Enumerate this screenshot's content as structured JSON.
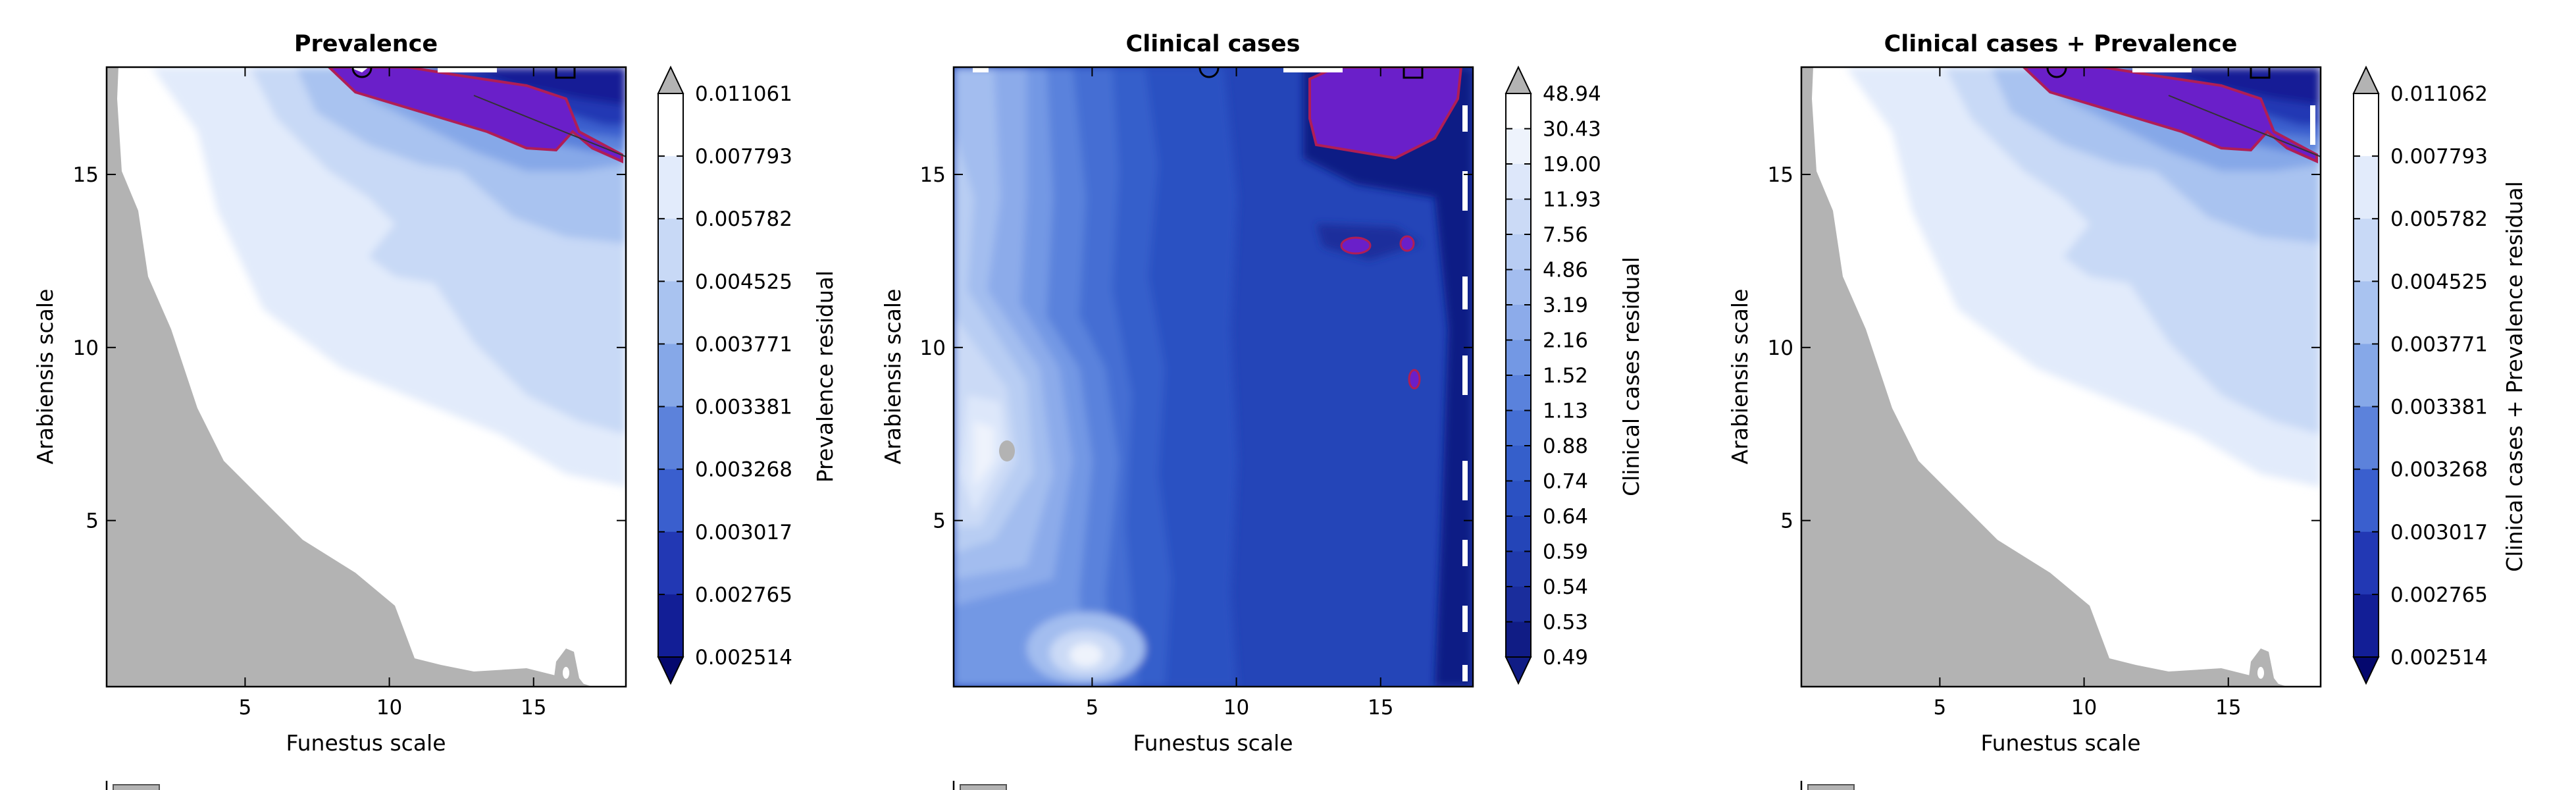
{
  "chart_data": [
    {
      "type": "heatmap",
      "title": "Prevalence",
      "xlabel": "Funestus scale",
      "ylabel": "Arabiensis scale",
      "xlim": [
        0.2,
        18.2
      ],
      "ylim": [
        0.2,
        18.1
      ],
      "xticks": [
        5,
        10,
        15
      ],
      "yticks": [
        5,
        10,
        15
      ],
      "colorbar_label": "Prevalence residual",
      "colorbar_levels": [
        "0.011061",
        "0.007793",
        "0.005782",
        "0.004525",
        "0.003771",
        "0.003381",
        "0.003268",
        "0.003017",
        "0.002765",
        "0.002514"
      ],
      "colorbar_colors": [
        "#ffffff",
        "#e2ebfb",
        "#c8d9f6",
        "#a9c3f0",
        "#86a8e8",
        "#5c82db",
        "#3a5fce",
        "#2238b4",
        "#121e96",
        "#04086e"
      ]
    },
    {
      "type": "heatmap",
      "title": "Clinical cases",
      "xlabel": "Funestus scale",
      "ylabel": "Arabiensis scale",
      "xlim": [
        0.2,
        18.2
      ],
      "ylim": [
        0.2,
        18.1
      ],
      "xticks": [
        5,
        10,
        15
      ],
      "yticks": [
        5,
        10,
        15
      ],
      "colorbar_label": "Clinical cases residual",
      "colorbar_levels": [
        "48.94",
        "30.43",
        "19.00",
        "11.93",
        "7.56",
        "4.86",
        "3.19",
        "2.16",
        "1.52",
        "1.13",
        "0.88",
        "0.74",
        "0.64",
        "0.59",
        "0.54",
        "0.53",
        "0.49"
      ],
      "colorbar_colors": [
        "#ffffff",
        "#eef3fc",
        "#dde7fa",
        "#cbdaf6",
        "#b8cdf3",
        "#a3bdef",
        "#8cabea",
        "#7398e4",
        "#5a82dc",
        "#446ed3",
        "#355fcb",
        "#2b51c2",
        "#2445b8",
        "#1f39ab",
        "#1a2d9c",
        "#101c85"
      ]
    },
    {
      "type": "heatmap",
      "title": "Clinical cases + Prevalence",
      "xlabel": "Funestus scale",
      "ylabel": "Arabiensis scale",
      "xlim": [
        0.2,
        18.2
      ],
      "ylim": [
        0.2,
        18.1
      ],
      "xticks": [
        5,
        10,
        15
      ],
      "yticks": [
        5,
        10,
        15
      ],
      "colorbar_label": "Clinical cases + Prevalence residual",
      "colorbar_levels": [
        "0.011062",
        "0.007793",
        "0.005782",
        "0.004525",
        "0.003771",
        "0.003381",
        "0.003268",
        "0.003017",
        "0.002765",
        "0.002514"
      ],
      "colorbar_colors": [
        "#ffffff",
        "#e2ebfb",
        "#c8d9f6",
        "#a9c3f0",
        "#86a8e8",
        "#5c82db",
        "#3a5fce",
        "#2238b4",
        "#121e96",
        "#04086e"
      ]
    }
  ],
  "colors": {
    "mask_gray": "#b3b3b3",
    "highlight_purple": "#6a1fc9",
    "highlight_outline": "#b01e55"
  }
}
